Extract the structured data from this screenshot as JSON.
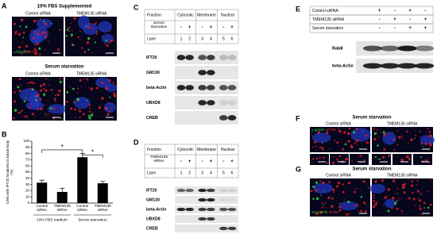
{
  "panel_labels": [
    "A",
    "B",
    "C",
    "D",
    "E",
    "F",
    "G"
  ],
  "panel_a": {
    "title_top": "10% FBS Supplemented",
    "title_bottom": "Serum starvation",
    "column_labels": [
      "Control siRNA",
      "TMEM135 siRNA"
    ],
    "stain_green": "γ-tubulin",
    "stain_red": "IFT20"
  },
  "chart_data": {
    "type": "bar",
    "y_label": "Cells with IFT20 localized to basal body (%)",
    "categories": [
      "Control siRNA",
      "TMEM135 siRNA",
      "Control siRNA",
      "TMEM135 siRNA"
    ],
    "groups": [
      "10% FBS medium",
      "Serum starvation"
    ],
    "values": [
      33,
      18,
      74,
      32
    ],
    "errors": [
      4,
      6,
      6,
      3
    ],
    "color": "#000000",
    "ylim": [
      0,
      100
    ],
    "yticks": [
      0,
      10,
      20,
      30,
      40,
      50,
      60,
      70,
      80,
      90,
      100
    ],
    "annotations": [
      "*",
      "*"
    ]
  },
  "panel_c": {
    "headers": [
      "Fraction",
      "Cytosolic",
      "Membrane",
      "Nuclear"
    ],
    "row_label": "Serum starvation",
    "signs": [
      "-",
      "+",
      "-",
      "+",
      "-",
      "+"
    ],
    "lane_label": "Lane",
    "lanes": [
      1,
      2,
      3,
      4,
      5,
      6
    ],
    "blots": [
      "IFT20",
      "GM130",
      "beta-Actin",
      "UBXD8",
      "CREB"
    ]
  },
  "panel_d": {
    "headers": [
      "Fraction",
      "Cytosolic",
      "Membrane",
      "Nuclear"
    ],
    "row_label": "TMEM135 siRNA",
    "signs": [
      "-",
      "+",
      "-",
      "+",
      "-",
      "+"
    ],
    "lane_label": "Lane",
    "lanes": [
      1,
      2,
      3,
      4,
      5,
      6
    ],
    "blots": [
      "IFT20",
      "GM130",
      "beta-Actin",
      "UBXD8",
      "CREB"
    ]
  },
  "panel_e": {
    "rows": [
      {
        "label": "Control siRNA",
        "signs": [
          "+",
          "-",
          "+",
          "-"
        ]
      },
      {
        "label": "TMEM135 siRNA",
        "signs": [
          "-",
          "+",
          "-",
          "+"
        ]
      },
      {
        "label": "Serum starvation",
        "signs": [
          "-",
          "-",
          "+",
          "+"
        ]
      }
    ],
    "blots": [
      "Rab8",
      "beta-Actin"
    ]
  },
  "panel_f": {
    "title": "Serum starvation",
    "column_labels": [
      "Control siRNA",
      "TMEM135 siRNA"
    ],
    "stain_green": "γ-tubulin",
    "stain_red": "IFT20"
  },
  "panel_g": {
    "title": "Serum starvation",
    "column_labels": [
      "Control siRNA",
      "TMEM135 siRNA"
    ],
    "stain_green": "Smo-GFP",
    "stain_red": "IFT20"
  }
}
